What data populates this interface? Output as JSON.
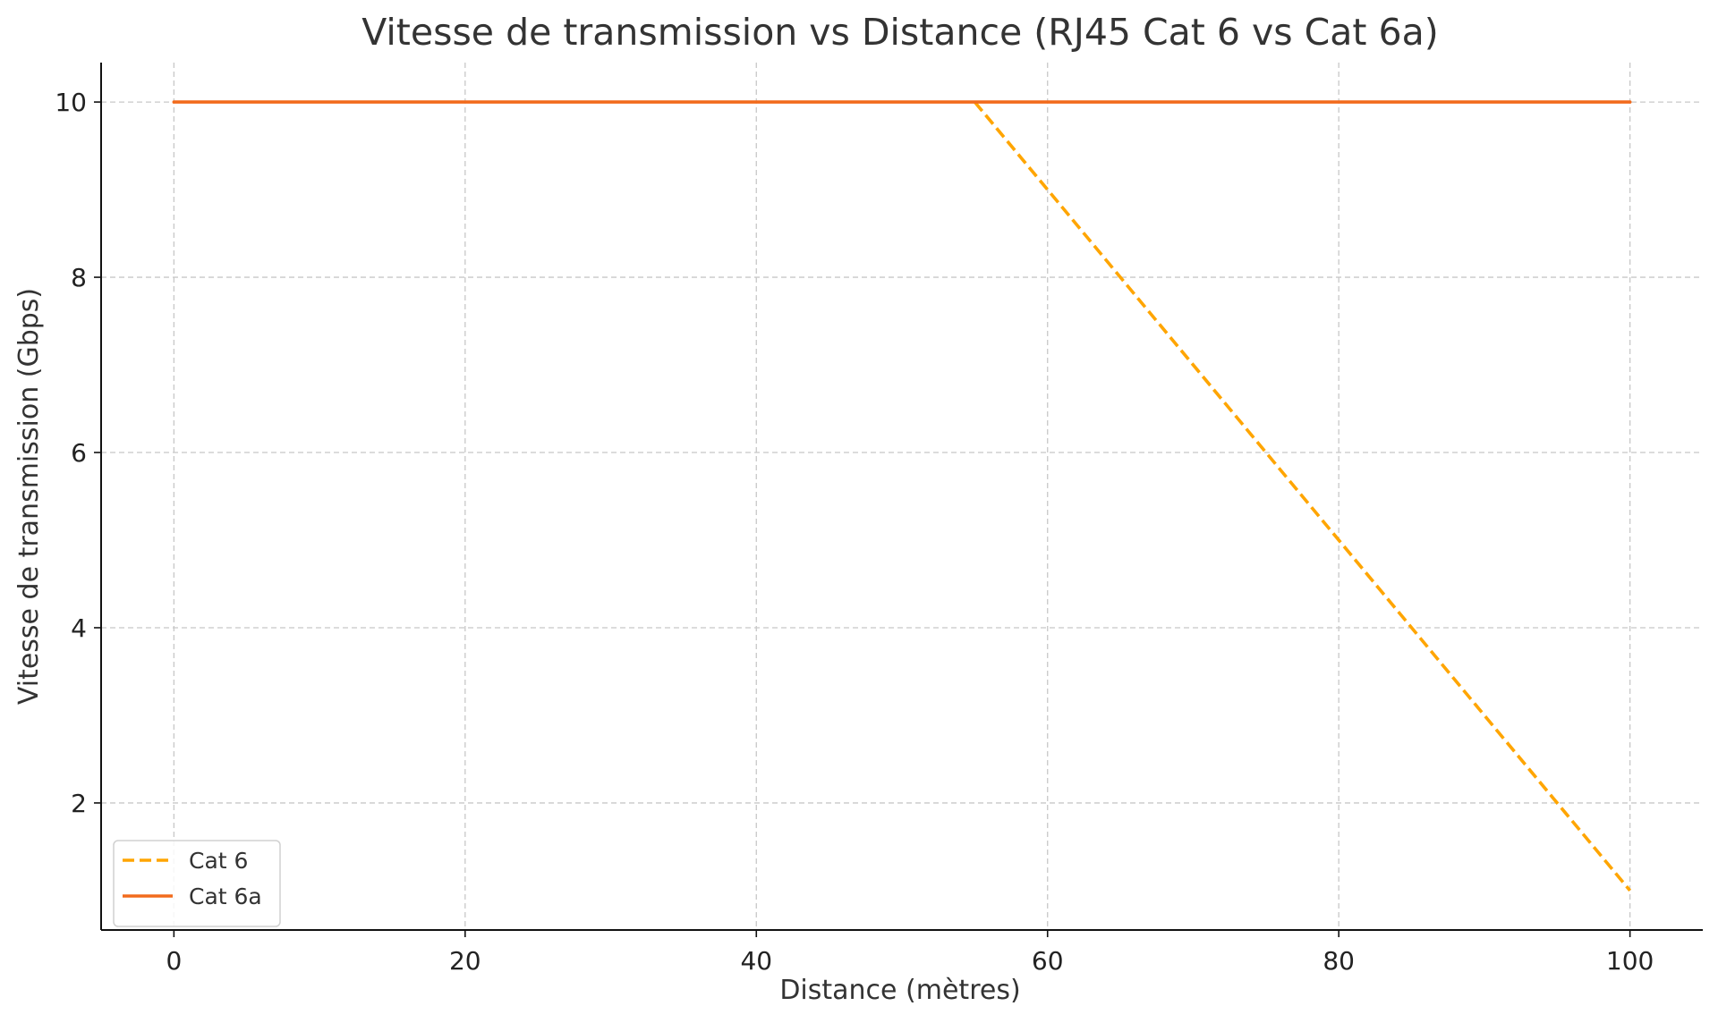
{
  "chart_data": {
    "type": "line",
    "title": "Vitesse de transmission vs Distance (RJ45 Cat 6 vs Cat 6a)",
    "xlabel": "Distance (mètres)",
    "ylabel": "Vitesse de transmission (Gbps)",
    "xlim": [
      -5,
      105
    ],
    "ylim": [
      0.55,
      10.45
    ],
    "xticks": [
      0,
      20,
      40,
      60,
      80,
      100
    ],
    "yticks": [
      2,
      4,
      6,
      8,
      10
    ],
    "grid": true,
    "legend_position": "bottom-left",
    "series": [
      {
        "name": "Cat 6",
        "color": "#FFA500",
        "style": "dashed",
        "x": [
          55,
          100
        ],
        "y": [
          10,
          1
        ]
      },
      {
        "name": "Cat 6a",
        "color": "#F26B1D",
        "style": "solid",
        "x": [
          0,
          100
        ],
        "y": [
          10,
          10
        ]
      }
    ]
  }
}
